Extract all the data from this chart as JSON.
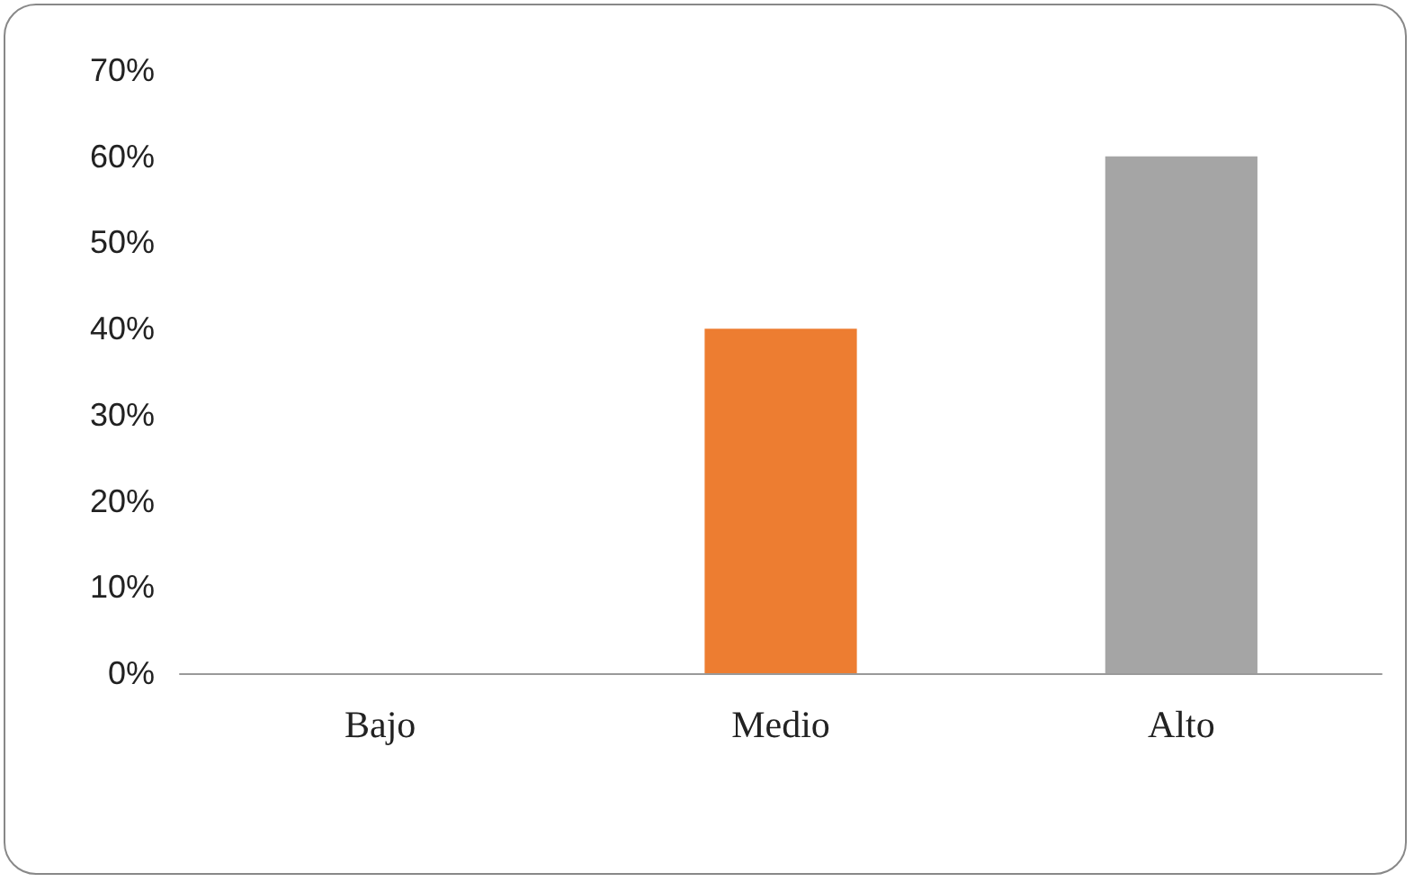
{
  "chart_data": {
    "type": "bar",
    "categories": [
      "Bajo",
      "Medio",
      "Alto"
    ],
    "values": [
      0,
      40,
      60
    ],
    "colors": [
      "#4472c4",
      "#ed7d31",
      "#a5a5a5"
    ],
    "ylim": [
      0,
      70
    ],
    "yticks": [
      {
        "value": 0,
        "label": "0%"
      },
      {
        "value": 10,
        "label": "10%"
      },
      {
        "value": 20,
        "label": "20%"
      },
      {
        "value": 30,
        "label": "30%"
      },
      {
        "value": 40,
        "label": "40%"
      },
      {
        "value": 50,
        "label": "50%"
      },
      {
        "value": 60,
        "label": "60%"
      },
      {
        "value": 70,
        "label": "70%"
      }
    ],
    "grid": false
  }
}
